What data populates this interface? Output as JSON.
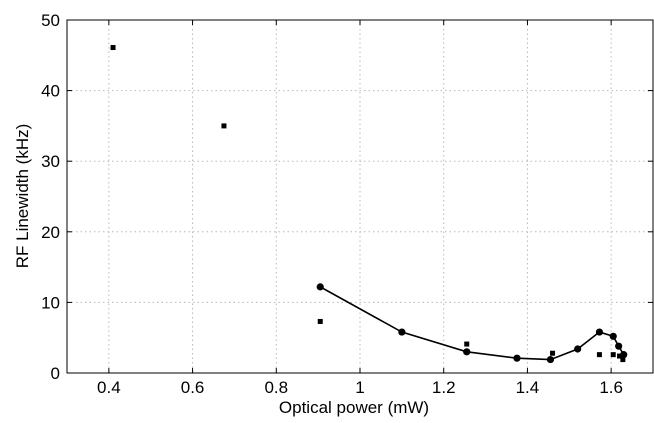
{
  "chart_data": {
    "type": "scatter",
    "title": "",
    "xlabel": "Optical power (mW)",
    "ylabel": "RF Linewidth (kHz)",
    "xlim": [
      0.3,
      1.7
    ],
    "ylim": [
      0,
      50
    ],
    "x_ticks": [
      0.4,
      0.6,
      0.8,
      1,
      1.2,
      1.4,
      1.6
    ],
    "x_tick_labels": [
      "0.4",
      "0.6",
      "0.8",
      "1",
      "1.2",
      "1.4",
      "1.6"
    ],
    "y_ticks": [
      0,
      10,
      20,
      30,
      40,
      50
    ],
    "y_tick_labels": [
      "0",
      "10",
      "20",
      "30",
      "40",
      "50"
    ],
    "grid": true,
    "legend": "none",
    "series": [
      {
        "marker": "square",
        "line": false,
        "color": "#000000",
        "points": [
          {
            "x": 0.41,
            "y": 46.1
          },
          {
            "x": 0.675,
            "y": 35.0
          },
          {
            "x": 0.905,
            "y": 7.3
          },
          {
            "x": 1.255,
            "y": 4.1
          },
          {
            "x": 1.46,
            "y": 2.8
          },
          {
            "x": 1.572,
            "y": 2.6
          },
          {
            "x": 1.605,
            "y": 2.6
          },
          {
            "x": 1.62,
            "y": 2.4
          },
          {
            "x": 1.628,
            "y": 1.9
          }
        ]
      },
      {
        "marker": "circle",
        "line": true,
        "color": "#000000",
        "points": [
          {
            "x": 0.905,
            "y": 12.2
          },
          {
            "x": 1.1,
            "y": 5.8
          },
          {
            "x": 1.255,
            "y": 3.0
          },
          {
            "x": 1.375,
            "y": 2.1
          },
          {
            "x": 1.455,
            "y": 1.9
          },
          {
            "x": 1.52,
            "y": 3.4
          },
          {
            "x": 1.572,
            "y": 5.8
          },
          {
            "x": 1.605,
            "y": 5.2
          },
          {
            "x": 1.618,
            "y": 3.8
          },
          {
            "x": 1.63,
            "y": 2.6
          }
        ]
      }
    ]
  }
}
